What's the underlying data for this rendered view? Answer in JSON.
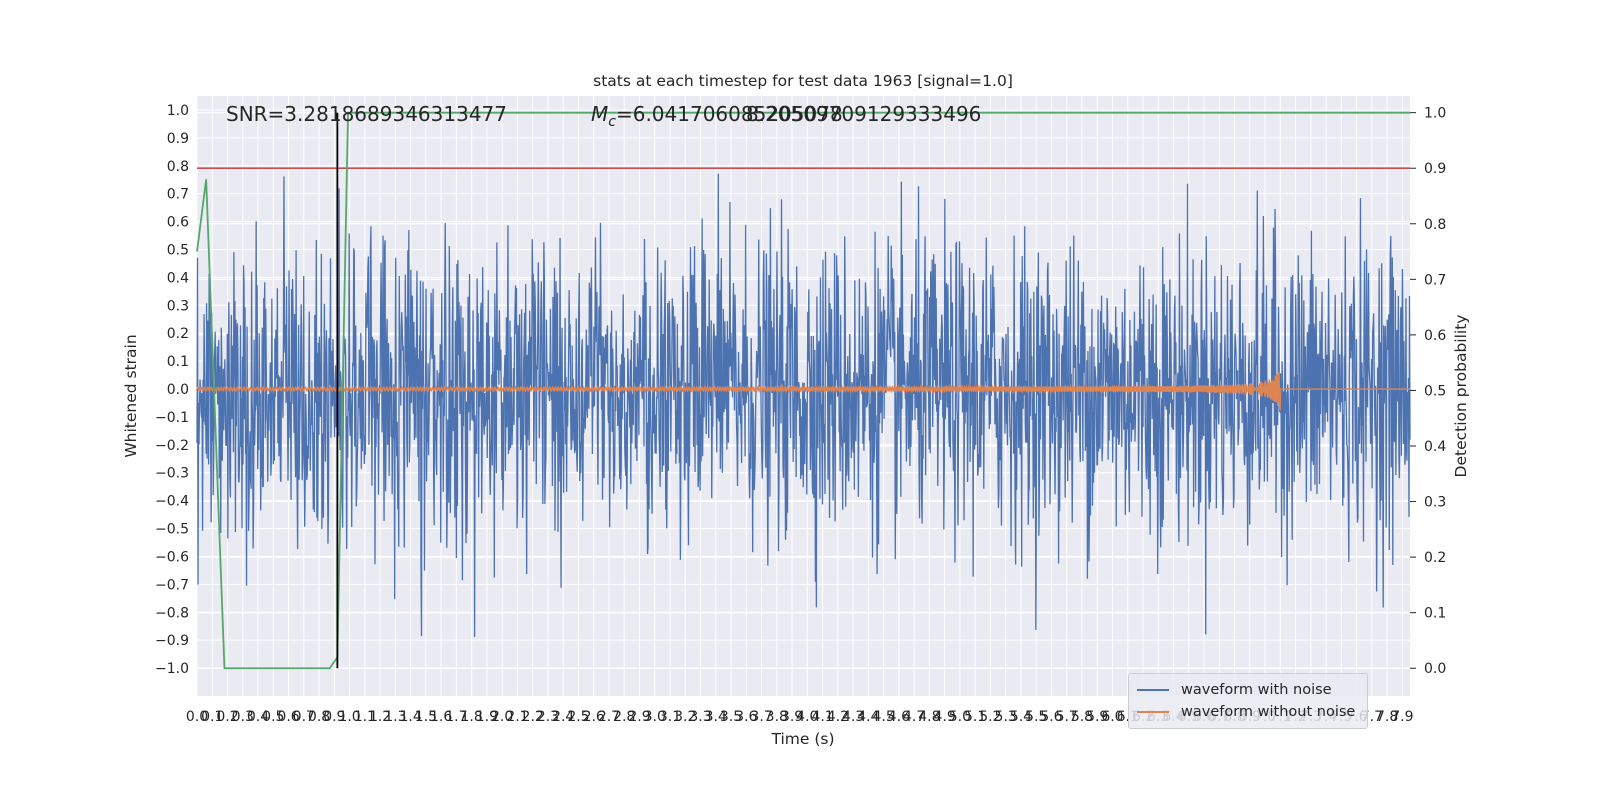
{
  "chart_data": {
    "type": "line",
    "title": "stats at each timestep for test data 1963 [signal=1.0]",
    "xlabel": "Time (s)",
    "ylabel_left": "Whitened strain",
    "ylabel_right": "Detection probability",
    "xlim": [
      0.0,
      7.95
    ],
    "ylim_left": [
      -1.1,
      1.05
    ],
    "ylim_right": [
      -0.05,
      1.03
    ],
    "x_tick_labels": [
      "0.0",
      "0.1",
      "0.2",
      "0.3",
      "0.4",
      "0.5",
      "0.6",
      "0.7",
      "0.8",
      "0.9",
      "1.0",
      "1.1",
      "1.2",
      "1.3",
      "1.4",
      "1.5",
      "1.6",
      "1.7",
      "1.8",
      "1.9",
      "2.0",
      "2.1",
      "2.2",
      "2.3",
      "2.4",
      "2.5",
      "2.6",
      "2.7",
      "2.8",
      "2.9",
      "3.0",
      "3.1",
      "3.2",
      "3.3",
      "3.4",
      "3.5",
      "3.6",
      "3.7",
      "3.8",
      "3.9",
      "4.0",
      "4.1",
      "4.2",
      "4.3",
      "4.4",
      "4.5",
      "4.6",
      "4.7",
      "4.8",
      "4.9",
      "5.0",
      "5.1",
      "5.2",
      "5.3",
      "5.4",
      "5.5",
      "5.6",
      "5.7",
      "5.8",
      "5.9",
      "6.0",
      "6.1",
      "6.2",
      "6.3",
      "6.4",
      "6.5",
      "6.6",
      "6.7",
      "6.8",
      "6.9",
      "7.0",
      "7.1",
      "7.2",
      "7.3",
      "7.4",
      "7.5",
      "7.6",
      "7.7",
      "7.8",
      "7.9"
    ],
    "y_tick_labels_left": [
      "1.0",
      "0.9",
      "0.8",
      "0.7",
      "0.6",
      "0.5",
      "0.4",
      "0.3",
      "0.2",
      "0.1",
      "0.0",
      "−0.1",
      "−0.2",
      "−0.3",
      "−0.4",
      "−0.5",
      "−0.6",
      "−0.7",
      "−0.8",
      "−0.9",
      "−1.0"
    ],
    "y_tick_labels_right": [
      "1.0",
      "0.9",
      "0.8",
      "0.7",
      "0.6",
      "0.5",
      "0.4",
      "0.3",
      "0.2",
      "0.1",
      "0.0"
    ],
    "annotations": {
      "snr": "SNR=3.2818689346313477",
      "mc": "M",
      "mc_sub": "c",
      "mc_value": "=6.041706085205078",
      "overlap": "8.20509709129333496"
    },
    "threshold_probability": 0.9,
    "detection_time": 0.92,
    "legend": [
      "waveform with noise",
      "waveform without noise"
    ],
    "series": [
      {
        "name": "waveform with noise",
        "color": "#4c72b0",
        "description_envelope": {
          "typical_abs": 0.4,
          "max": 0.97,
          "min": -1.0
        }
      },
      {
        "name": "waveform without noise",
        "color": "#dd8452",
        "merger_time": 7.1,
        "max_amplitude": 0.075
      },
      {
        "name": "detection probability",
        "color": "#55a868",
        "x": [
          0.0,
          0.06,
          0.18,
          0.2,
          0.3,
          0.5,
          0.7,
          0.87,
          0.92,
          0.99,
          1.0,
          7.95
        ],
        "y": [
          0.75,
          0.88,
          0.0,
          0.0,
          0.0,
          0.0,
          0.0,
          0.0,
          0.02,
          1.0,
          1.0,
          1.0
        ]
      }
    ],
    "grid": true,
    "legend_position": "lower-right"
  }
}
